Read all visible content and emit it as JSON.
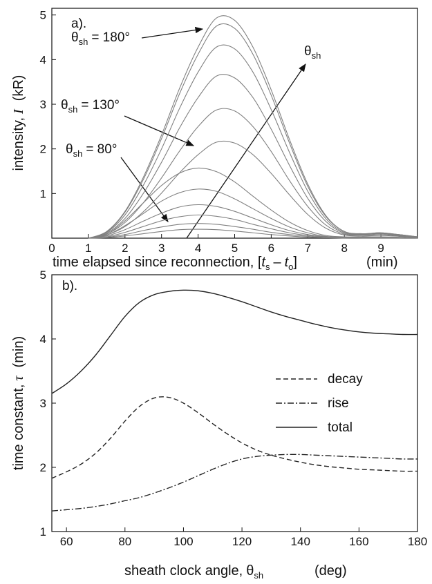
{
  "chart_data": [
    {
      "type": "line",
      "label": "a).",
      "x_label": [
        "time elapsed since reconnection, [",
        "t",
        "s",
        "–",
        "t",
        "o",
        "]",
        "(min)"
      ],
      "y_label": [
        "intensity,",
        "I",
        "(kR)"
      ],
      "xlim": [
        0,
        10
      ],
      "xticks": [
        0,
        1,
        2,
        3,
        4,
        5,
        6,
        7,
        8,
        9
      ],
      "ylim": [
        0,
        5.15
      ],
      "yticks": [
        1,
        2,
        3,
        4,
        5
      ],
      "x": [
        1,
        1.5,
        2,
        2.5,
        3,
        3.5,
        4,
        4.5,
        5,
        5.5,
        6,
        6.5,
        7,
        7.5,
        8,
        8.5,
        9,
        9.5,
        10
      ],
      "series": [
        {
          "color": "#808080",
          "values": [
            0,
            0.15,
            0.6,
            1.36,
            2.31,
            3.37,
            4.28,
            4.93,
            4.88,
            4.28,
            3.32,
            2.21,
            1.21,
            0.5,
            0.15,
            0.1,
            0.12,
            0.08,
            0.03
          ]
        },
        {
          "color": "#808080",
          "values": [
            0,
            0.14,
            0.58,
            1.31,
            2.23,
            3.25,
            4.12,
            4.75,
            4.7,
            4.12,
            3.2,
            2.13,
            1.16,
            0.48,
            0.15,
            0.1,
            0.12,
            0.08,
            0.03
          ]
        },
        {
          "color": "#808080",
          "values": [
            0,
            0.13,
            0.52,
            1.18,
            2.0,
            2.92,
            3.72,
            4.28,
            4.24,
            3.72,
            2.88,
            1.92,
            1.05,
            0.43,
            0.13,
            0.09,
            0.11,
            0.07,
            0.03
          ]
        },
        {
          "color": "#808080",
          "values": [
            0,
            0.11,
            0.44,
            1.0,
            1.7,
            2.48,
            3.15,
            3.63,
            3.59,
            3.15,
            2.44,
            1.63,
            0.89,
            0.37,
            0.11,
            0.08,
            0.1,
            0.06,
            0.02
          ]
        },
        {
          "color": "#808080",
          "values": [
            0,
            0.09,
            0.35,
            0.79,
            1.35,
            1.96,
            2.5,
            2.87,
            2.85,
            2.5,
            1.94,
            1.29,
            0.71,
            0.29,
            0.09,
            0.07,
            0.08,
            0.05,
            0.02
          ]
        },
        {
          "color": "#808080",
          "values": [
            0,
            0.07,
            0.26,
            0.59,
            1.01,
            1.47,
            1.87,
            2.15,
            2.13,
            1.87,
            1.45,
            0.97,
            0.53,
            0.22,
            0.07,
            0.05,
            0.06,
            0.04,
            0.01
          ]
        },
        {
          "color": "#808080",
          "values": [
            0,
            0.09,
            0.39,
            0.79,
            1.18,
            1.46,
            1.57,
            1.49,
            1.26,
            0.94,
            0.63,
            0.36,
            0.17,
            0.06,
            0.03,
            0.03,
            0.03,
            0.02,
            0
          ]
        },
        {
          "color": "#808080",
          "values": [
            0,
            0.07,
            0.28,
            0.55,
            0.83,
            1.02,
            1.1,
            1.05,
            0.88,
            0.66,
            0.44,
            0.25,
            0.12,
            0.04,
            0.02,
            0.02,
            0.02,
            0.01,
            0
          ]
        },
        {
          "color": "#808080",
          "values": [
            0,
            0.05,
            0.19,
            0.38,
            0.56,
            0.7,
            0.75,
            0.71,
            0.6,
            0.45,
            0.3,
            0.17,
            0.08,
            0.03,
            0.02,
            0.02,
            0.02,
            0.01,
            0
          ]
        },
        {
          "color": "#808080",
          "values": [
            0,
            0.03,
            0.13,
            0.26,
            0.39,
            0.48,
            0.52,
            0.49,
            0.42,
            0.31,
            0.21,
            0.12,
            0.06,
            0.02,
            0.01,
            0.01,
            0.01,
            0.01,
            0
          ]
        },
        {
          "color": "#808080",
          "values": [
            0,
            0.02,
            0.08,
            0.17,
            0.25,
            0.31,
            0.33,
            0.31,
            0.26,
            0.2,
            0.13,
            0.08,
            0.04,
            0.01,
            0.01,
            0.01,
            0.01,
            0,
            0
          ]
        },
        {
          "color": "#808080",
          "values": [
            0,
            0.01,
            0.05,
            0.1,
            0.15,
            0.19,
            0.2,
            0.19,
            0.16,
            0.12,
            0.08,
            0.05,
            0.02,
            0.01,
            0,
            0,
            0,
            0,
            0
          ]
        }
      ],
      "annotations": [
        {
          "symbol": "θ",
          "subscript": "sh",
          "text": "= 180°"
        },
        {
          "symbol": "θ",
          "subscript": "sh",
          "text": "= 130°"
        },
        {
          "symbol": "θ",
          "subscript": "sh",
          "text": "= 80°"
        },
        {
          "symbol": "θ",
          "subscript": "sh"
        }
      ]
    },
    {
      "type": "line",
      "label": "b).",
      "x_label": [
        "sheath clock angle,",
        "θ",
        "sh",
        "(deg)"
      ],
      "y_label": [
        "time constant,",
        "τ",
        "(min)"
      ],
      "xlim": [
        55,
        180
      ],
      "xticks": [
        60,
        80,
        100,
        120,
        140,
        160,
        180
      ],
      "ylim": [
        1,
        5
      ],
      "yticks": [
        1,
        2,
        3,
        4,
        5
      ],
      "legend": "center right",
      "x": [
        55,
        60,
        65,
        70,
        75,
        80,
        85,
        90,
        95,
        100,
        105,
        110,
        115,
        120,
        125,
        130,
        135,
        140,
        145,
        150,
        155,
        160,
        165,
        170,
        175,
        180
      ],
      "series": [
        {
          "name": "decay",
          "color": "#222222",
          "dash": "dashed",
          "values": [
            1.83,
            1.93,
            2.05,
            2.22,
            2.45,
            2.72,
            2.95,
            3.08,
            3.09,
            3.0,
            2.85,
            2.68,
            2.52,
            2.38,
            2.27,
            2.19,
            2.13,
            2.08,
            2.04,
            2.01,
            1.99,
            1.97,
            1.96,
            1.95,
            1.94,
            1.94
          ]
        },
        {
          "name": "rise",
          "color": "#222222",
          "dash": "dashdot",
          "values": [
            1.32,
            1.34,
            1.36,
            1.39,
            1.43,
            1.48,
            1.53,
            1.6,
            1.68,
            1.77,
            1.87,
            1.97,
            2.06,
            2.13,
            2.17,
            2.19,
            2.2,
            2.2,
            2.19,
            2.18,
            2.17,
            2.16,
            2.15,
            2.14,
            2.13,
            2.13
          ]
        },
        {
          "name": "total",
          "color": "#222222",
          "dash": "solid",
          "values": [
            3.15,
            3.3,
            3.5,
            3.75,
            4.05,
            4.35,
            4.57,
            4.69,
            4.74,
            4.76,
            4.75,
            4.71,
            4.65,
            4.58,
            4.5,
            4.42,
            4.35,
            4.29,
            4.23,
            4.18,
            4.14,
            4.11,
            4.09,
            4.08,
            4.07,
            4.07
          ]
        }
      ]
    }
  ]
}
